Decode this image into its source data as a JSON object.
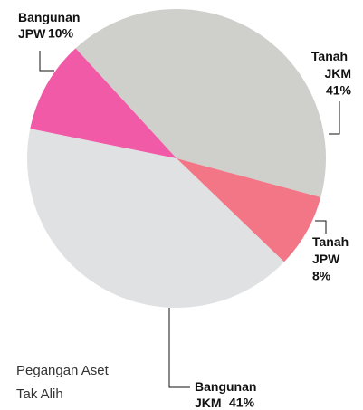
{
  "chart_data": {
    "type": "pie",
    "annotation": "Pegangan Aset Tak Alih",
    "categories": [
      "Tanah JKM",
      "Tanah JPW",
      "Bangunan JKM",
      "Bangunan JPW"
    ],
    "values": [
      41,
      8,
      41,
      10
    ],
    "value_labels": [
      "41%",
      "8%",
      "41%",
      "10%"
    ],
    "colors": [
      "#cfcfcb",
      "#f27685",
      "#e0e1e3",
      "#f05aa6"
    ]
  }
}
